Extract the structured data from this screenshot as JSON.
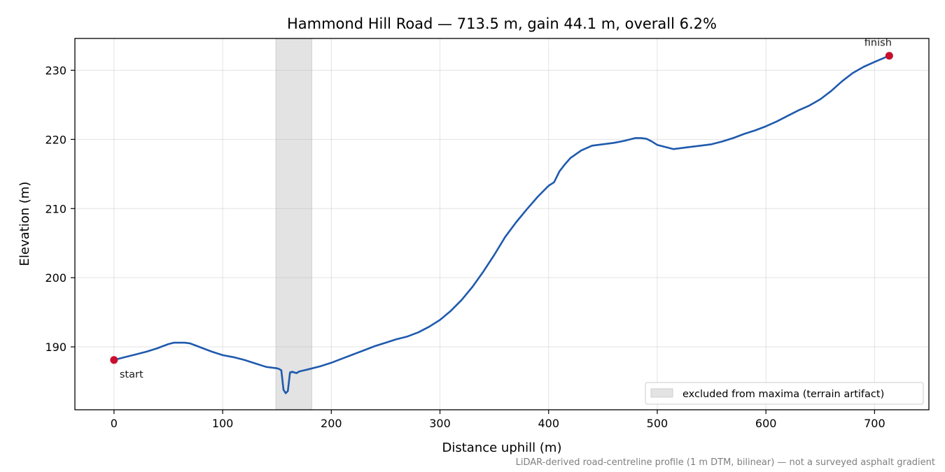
{
  "chart_data": {
    "type": "line",
    "title": "Hammond Hill Road — 713.5 m, gain 44.1 m, overall 6.2%",
    "xlabel": "Distance uphill (m)",
    "ylabel": "Elevation (m)",
    "xlim": [
      -36,
      750
    ],
    "ylim": [
      180.9,
      234.6
    ],
    "xticks": [
      0,
      100,
      200,
      300,
      400,
      500,
      600,
      700
    ],
    "yticks": [
      190,
      200,
      210,
      220,
      230
    ],
    "grid": true,
    "series": [
      {
        "color": "#1f5aad",
        "x": [
          0,
          10,
          20,
          30,
          40,
          45,
          50,
          55,
          60,
          65,
          70,
          75,
          80,
          90,
          100,
          110,
          120,
          130,
          140,
          150,
          152,
          154,
          156,
          158,
          160,
          162,
          164,
          166,
          168,
          170,
          172,
          175,
          180,
          190,
          200,
          210,
          220,
          230,
          240,
          250,
          260,
          270,
          280,
          290,
          300,
          310,
          320,
          330,
          340,
          350,
          360,
          370,
          380,
          390,
          400,
          405,
          410,
          415,
          420,
          430,
          440,
          450,
          460,
          470,
          480,
          485,
          490,
          495,
          500,
          510,
          515,
          520,
          530,
          540,
          550,
          560,
          570,
          580,
          590,
          600,
          610,
          620,
          630,
          640,
          650,
          660,
          670,
          680,
          690,
          700,
          713.5
        ],
        "y": [
          188.1,
          188.5,
          188.9,
          189.3,
          189.8,
          190.1,
          190.4,
          190.6,
          190.6,
          190.6,
          190.5,
          190.2,
          189.9,
          189.3,
          188.8,
          188.5,
          188.1,
          187.6,
          187.1,
          186.9,
          186.8,
          186.6,
          183.8,
          183.3,
          183.6,
          186.3,
          186.4,
          186.3,
          186.2,
          186.4,
          186.5,
          186.6,
          186.8,
          187.2,
          187.7,
          188.3,
          188.9,
          189.5,
          190.1,
          190.6,
          191.1,
          191.5,
          192.1,
          192.9,
          193.9,
          195.2,
          196.8,
          198.7,
          200.9,
          203.3,
          205.9,
          208.0,
          209.9,
          211.7,
          213.3,
          213.8,
          215.4,
          216.4,
          217.3,
          218.4,
          219.1,
          219.3,
          219.5,
          219.8,
          220.2,
          220.2,
          220.1,
          219.7,
          219.2,
          218.8,
          218.6,
          218.7,
          218.9,
          219.1,
          219.3,
          219.7,
          220.2,
          220.8,
          221.3,
          221.9,
          222.6,
          223.4,
          224.2,
          224.9,
          225.8,
          227.0,
          228.4,
          229.6,
          230.5,
          231.2,
          232.1
        ]
      }
    ],
    "endpoints": [
      {
        "label": "start",
        "x": 0,
        "y": 188.1
      },
      {
        "label": "finish",
        "x": 713.5,
        "y": 232.1
      }
    ],
    "shaded_region": {
      "x0": 149,
      "x1": 182,
      "label": "excluded from maxima (terrain artifact)"
    },
    "legend_position": "lower-right",
    "footnote": "LiDAR-derived road-centreline profile (1 m DTM, bilinear) — not a surveyed asphalt gradient",
    "colors": {
      "line": "#1f5aad",
      "markers": "#c8102e",
      "shade": "#e3e3e3"
    }
  }
}
